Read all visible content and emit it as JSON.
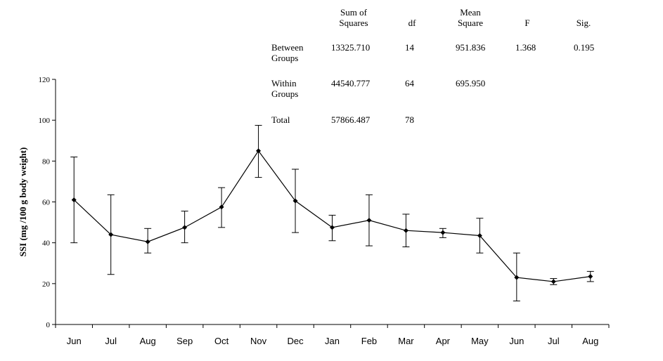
{
  "chart_data": {
    "type": "line",
    "title": "",
    "xlabel": "",
    "ylabel": "SSI (mg /100 g body weight)",
    "categories": [
      "Jun",
      "Jul",
      "Aug",
      "Sep",
      "Oct",
      "Nov",
      "Dec",
      "Jan",
      "Feb",
      "Mar",
      "Apr",
      "May",
      "Jun",
      "Jul",
      "Aug"
    ],
    "series": [
      {
        "values": [
          61,
          44,
          40.5,
          47.5,
          57.5,
          85,
          60.5,
          47.5,
          51,
          46,
          45,
          43.5,
          23,
          21,
          23.5
        ],
        "error_low": [
          40,
          24.5,
          35,
          40,
          47.5,
          72,
          45,
          41,
          38.5,
          38,
          42.5,
          35,
          11.5,
          19.5,
          21
        ],
        "error_high": [
          82,
          63.5,
          47,
          55.5,
          67,
          97.5,
          76,
          53.5,
          63.5,
          54,
          47,
          52,
          35,
          22.5,
          26
        ]
      }
    ],
    "ylim": [
      0,
      120
    ],
    "yticks": [
      0,
      20,
      40,
      60,
      80,
      100,
      120
    ],
    "grid": false,
    "marker": "diamond",
    "line_color": "#000000"
  },
  "anova_table": {
    "headers": [
      "Sum of\nSquares",
      "df",
      "Mean\nSquare",
      "F",
      "Sig."
    ],
    "rows": [
      {
        "label": "Between\nGroups",
        "sum_sq": "13325.710",
        "df": "14",
        "mean_sq": "951.836",
        "f": "1.368",
        "sig": "0.195"
      },
      {
        "label": "Within\nGroups",
        "sum_sq": "44540.777",
        "df": "64",
        "mean_sq": "695.950",
        "f": "",
        "sig": ""
      },
      {
        "label": "Total",
        "sum_sq": "57866.487",
        "df": "78",
        "mean_sq": "",
        "f": "",
        "sig": ""
      }
    ]
  }
}
